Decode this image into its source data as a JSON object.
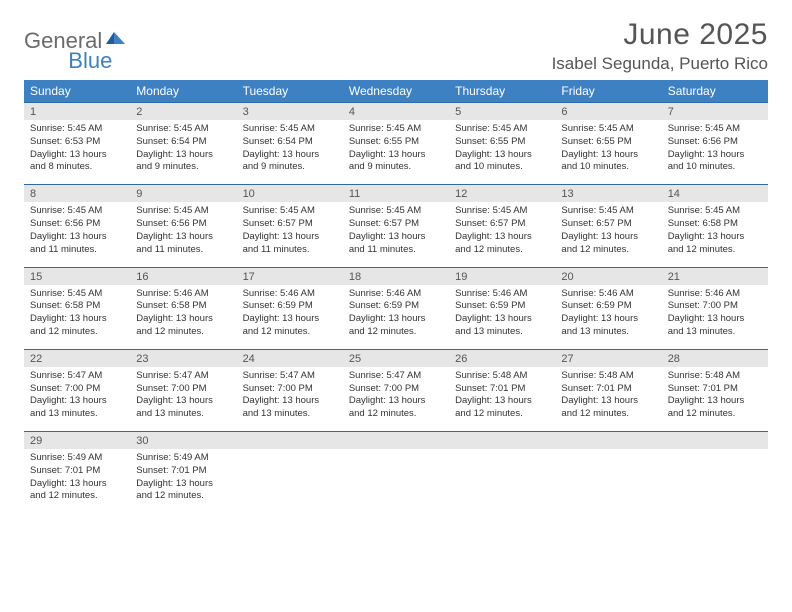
{
  "logo": {
    "general": "General",
    "blue": "Blue"
  },
  "header": {
    "month_title": "June 2025",
    "location": "Isabel Segunda, Puerto Rico"
  },
  "colors": {
    "header_bg": "#3d81c2",
    "header_text": "#ffffff",
    "daynum_bg": "#e6e6e6",
    "border": "#2f6aa3",
    "body_text": "#333333"
  },
  "dow": [
    "Sunday",
    "Monday",
    "Tuesday",
    "Wednesday",
    "Thursday",
    "Friday",
    "Saturday"
  ],
  "weeks": [
    {
      "nums": [
        "1",
        "2",
        "3",
        "4",
        "5",
        "6",
        "7"
      ],
      "cells": [
        {
          "sr": "5:45 AM",
          "ss": "6:53 PM",
          "dl": "13 hours and 8 minutes."
        },
        {
          "sr": "5:45 AM",
          "ss": "6:54 PM",
          "dl": "13 hours and 9 minutes."
        },
        {
          "sr": "5:45 AM",
          "ss": "6:54 PM",
          "dl": "13 hours and 9 minutes."
        },
        {
          "sr": "5:45 AM",
          "ss": "6:55 PM",
          "dl": "13 hours and 9 minutes."
        },
        {
          "sr": "5:45 AM",
          "ss": "6:55 PM",
          "dl": "13 hours and 10 minutes."
        },
        {
          "sr": "5:45 AM",
          "ss": "6:55 PM",
          "dl": "13 hours and 10 minutes."
        },
        {
          "sr": "5:45 AM",
          "ss": "6:56 PM",
          "dl": "13 hours and 10 minutes."
        }
      ]
    },
    {
      "nums": [
        "8",
        "9",
        "10",
        "11",
        "12",
        "13",
        "14"
      ],
      "cells": [
        {
          "sr": "5:45 AM",
          "ss": "6:56 PM",
          "dl": "13 hours and 11 minutes."
        },
        {
          "sr": "5:45 AM",
          "ss": "6:56 PM",
          "dl": "13 hours and 11 minutes."
        },
        {
          "sr": "5:45 AM",
          "ss": "6:57 PM",
          "dl": "13 hours and 11 minutes."
        },
        {
          "sr": "5:45 AM",
          "ss": "6:57 PM",
          "dl": "13 hours and 11 minutes."
        },
        {
          "sr": "5:45 AM",
          "ss": "6:57 PM",
          "dl": "13 hours and 12 minutes."
        },
        {
          "sr": "5:45 AM",
          "ss": "6:57 PM",
          "dl": "13 hours and 12 minutes."
        },
        {
          "sr": "5:45 AM",
          "ss": "6:58 PM",
          "dl": "13 hours and 12 minutes."
        }
      ]
    },
    {
      "nums": [
        "15",
        "16",
        "17",
        "18",
        "19",
        "20",
        "21"
      ],
      "cells": [
        {
          "sr": "5:45 AM",
          "ss": "6:58 PM",
          "dl": "13 hours and 12 minutes."
        },
        {
          "sr": "5:46 AM",
          "ss": "6:58 PM",
          "dl": "13 hours and 12 minutes."
        },
        {
          "sr": "5:46 AM",
          "ss": "6:59 PM",
          "dl": "13 hours and 12 minutes."
        },
        {
          "sr": "5:46 AM",
          "ss": "6:59 PM",
          "dl": "13 hours and 12 minutes."
        },
        {
          "sr": "5:46 AM",
          "ss": "6:59 PM",
          "dl": "13 hours and 13 minutes."
        },
        {
          "sr": "5:46 AM",
          "ss": "6:59 PM",
          "dl": "13 hours and 13 minutes."
        },
        {
          "sr": "5:46 AM",
          "ss": "7:00 PM",
          "dl": "13 hours and 13 minutes."
        }
      ]
    },
    {
      "nums": [
        "22",
        "23",
        "24",
        "25",
        "26",
        "27",
        "28"
      ],
      "cells": [
        {
          "sr": "5:47 AM",
          "ss": "7:00 PM",
          "dl": "13 hours and 13 minutes."
        },
        {
          "sr": "5:47 AM",
          "ss": "7:00 PM",
          "dl": "13 hours and 13 minutes."
        },
        {
          "sr": "5:47 AM",
          "ss": "7:00 PM",
          "dl": "13 hours and 13 minutes."
        },
        {
          "sr": "5:47 AM",
          "ss": "7:00 PM",
          "dl": "13 hours and 12 minutes."
        },
        {
          "sr": "5:48 AM",
          "ss": "7:01 PM",
          "dl": "13 hours and 12 minutes."
        },
        {
          "sr": "5:48 AM",
          "ss": "7:01 PM",
          "dl": "13 hours and 12 minutes."
        },
        {
          "sr": "5:48 AM",
          "ss": "7:01 PM",
          "dl": "13 hours and 12 minutes."
        }
      ]
    },
    {
      "nums": [
        "29",
        "30",
        "",
        "",
        "",
        "",
        ""
      ],
      "cells": [
        {
          "sr": "5:49 AM",
          "ss": "7:01 PM",
          "dl": "13 hours and 12 minutes."
        },
        {
          "sr": "5:49 AM",
          "ss": "7:01 PM",
          "dl": "13 hours and 12 minutes."
        },
        null,
        null,
        null,
        null,
        null
      ]
    }
  ],
  "labels": {
    "sunrise": "Sunrise: ",
    "sunset": "Sunset: ",
    "daylight": "Daylight: "
  }
}
